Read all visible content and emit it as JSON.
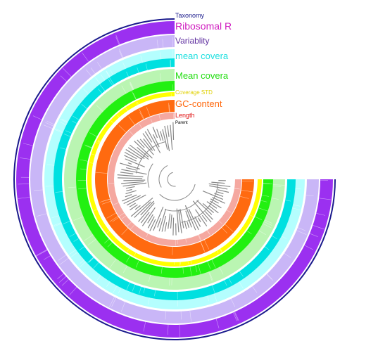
{
  "layers": [
    {
      "label": "Taxonomy",
      "color": "#1a1a8c"
    },
    {
      "label": "Ribosomal R",
      "color": "#d020c0"
    },
    {
      "label": "Variablity",
      "color": "#6030a0"
    },
    {
      "label": "mean covera",
      "color": "#20e0e0"
    },
    {
      "label": "Mean covera",
      "color": "#22dd11"
    },
    {
      "label": "Coverage STD",
      "color": "#e0d000"
    },
    {
      "label": "GC-content",
      "color": "#ff6a10"
    },
    {
      "label": "Length",
      "color": "#e01010"
    },
    {
      "label": "Parent",
      "color": "#000000"
    }
  ]
}
